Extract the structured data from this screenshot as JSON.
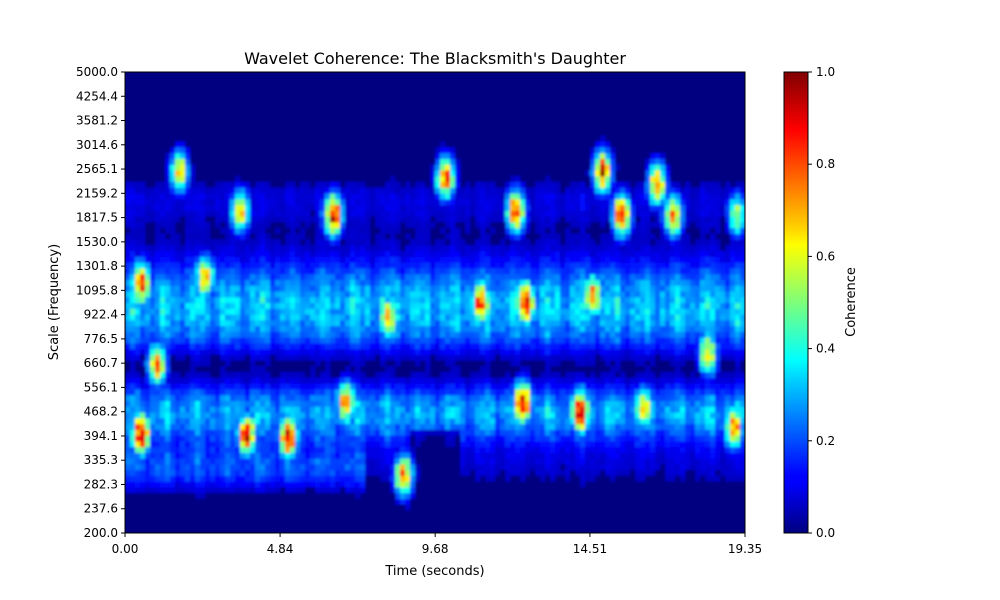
{
  "chart_data": {
    "type": "heatmap",
    "title": "Wavelet Coherence: The Blacksmith's Daughter",
    "xlabel": "Time (seconds)",
    "ylabel": "Scale (Frequency)",
    "colorbar_label": "Coherence",
    "colormap": "jet",
    "xlim": [
      0,
      19.35
    ],
    "ylim": [
      200.0,
      5000.0
    ],
    "y_scale": "log",
    "clim": [
      0,
      1
    ],
    "x_ticks": [
      "0.00",
      "4.84",
      "9.68",
      "14.51",
      "19.35"
    ],
    "y_ticks": [
      "200.0",
      "237.6",
      "282.3",
      "335.3",
      "394.1",
      "468.2",
      "556.1",
      "660.7",
      "776.5",
      "922.4",
      "1095.8",
      "1301.8",
      "1530.0",
      "1817.5",
      "2159.2",
      "2565.1",
      "3014.6",
      "3581.2",
      "4254.4",
      "5000.0"
    ],
    "colorbar_ticks": [
      "0.0",
      "0.2",
      "0.4",
      "0.6",
      "0.8",
      "1.0"
    ],
    "hotspots": [
      {
        "t": 0.5,
        "scale": 400,
        "coherence": 1.0
      },
      {
        "t": 0.5,
        "scale": 1150,
        "coherence": 0.9
      },
      {
        "t": 1.0,
        "scale": 650,
        "coherence": 0.8
      },
      {
        "t": 1.7,
        "scale": 2500,
        "coherence": 0.7
      },
      {
        "t": 2.5,
        "scale": 1200,
        "coherence": 0.75
      },
      {
        "t": 3.6,
        "scale": 1900,
        "coherence": 0.75
      },
      {
        "t": 3.8,
        "scale": 400,
        "coherence": 0.9
      },
      {
        "t": 5.1,
        "scale": 390,
        "coherence": 1.0
      },
      {
        "t": 6.5,
        "scale": 1850,
        "coherence": 0.95
      },
      {
        "t": 6.9,
        "scale": 500,
        "coherence": 0.8
      },
      {
        "t": 8.2,
        "scale": 900,
        "coherence": 0.75
      },
      {
        "t": 8.7,
        "scale": 300,
        "coherence": 0.8
      },
      {
        "t": 10.0,
        "scale": 2400,
        "coherence": 0.85
      },
      {
        "t": 11.1,
        "scale": 1000,
        "coherence": 0.9
      },
      {
        "t": 12.4,
        "scale": 500,
        "coherence": 1.0
      },
      {
        "t": 12.2,
        "scale": 1900,
        "coherence": 0.9
      },
      {
        "t": 12.5,
        "scale": 1000,
        "coherence": 1.0
      },
      {
        "t": 14.2,
        "scale": 470,
        "coherence": 1.0
      },
      {
        "t": 14.6,
        "scale": 1050,
        "coherence": 0.8
      },
      {
        "t": 14.9,
        "scale": 2500,
        "coherence": 0.9
      },
      {
        "t": 15.5,
        "scale": 1850,
        "coherence": 0.9
      },
      {
        "t": 16.2,
        "scale": 480,
        "coherence": 0.75
      },
      {
        "t": 16.6,
        "scale": 2300,
        "coherence": 0.8
      },
      {
        "t": 17.1,
        "scale": 1850,
        "coherence": 0.8
      },
      {
        "t": 18.2,
        "scale": 700,
        "coherence": 0.7
      },
      {
        "t": 19.0,
        "scale": 420,
        "coherence": 0.8
      },
      {
        "t": 19.1,
        "scale": 1850,
        "coherence": 0.6
      }
    ]
  }
}
